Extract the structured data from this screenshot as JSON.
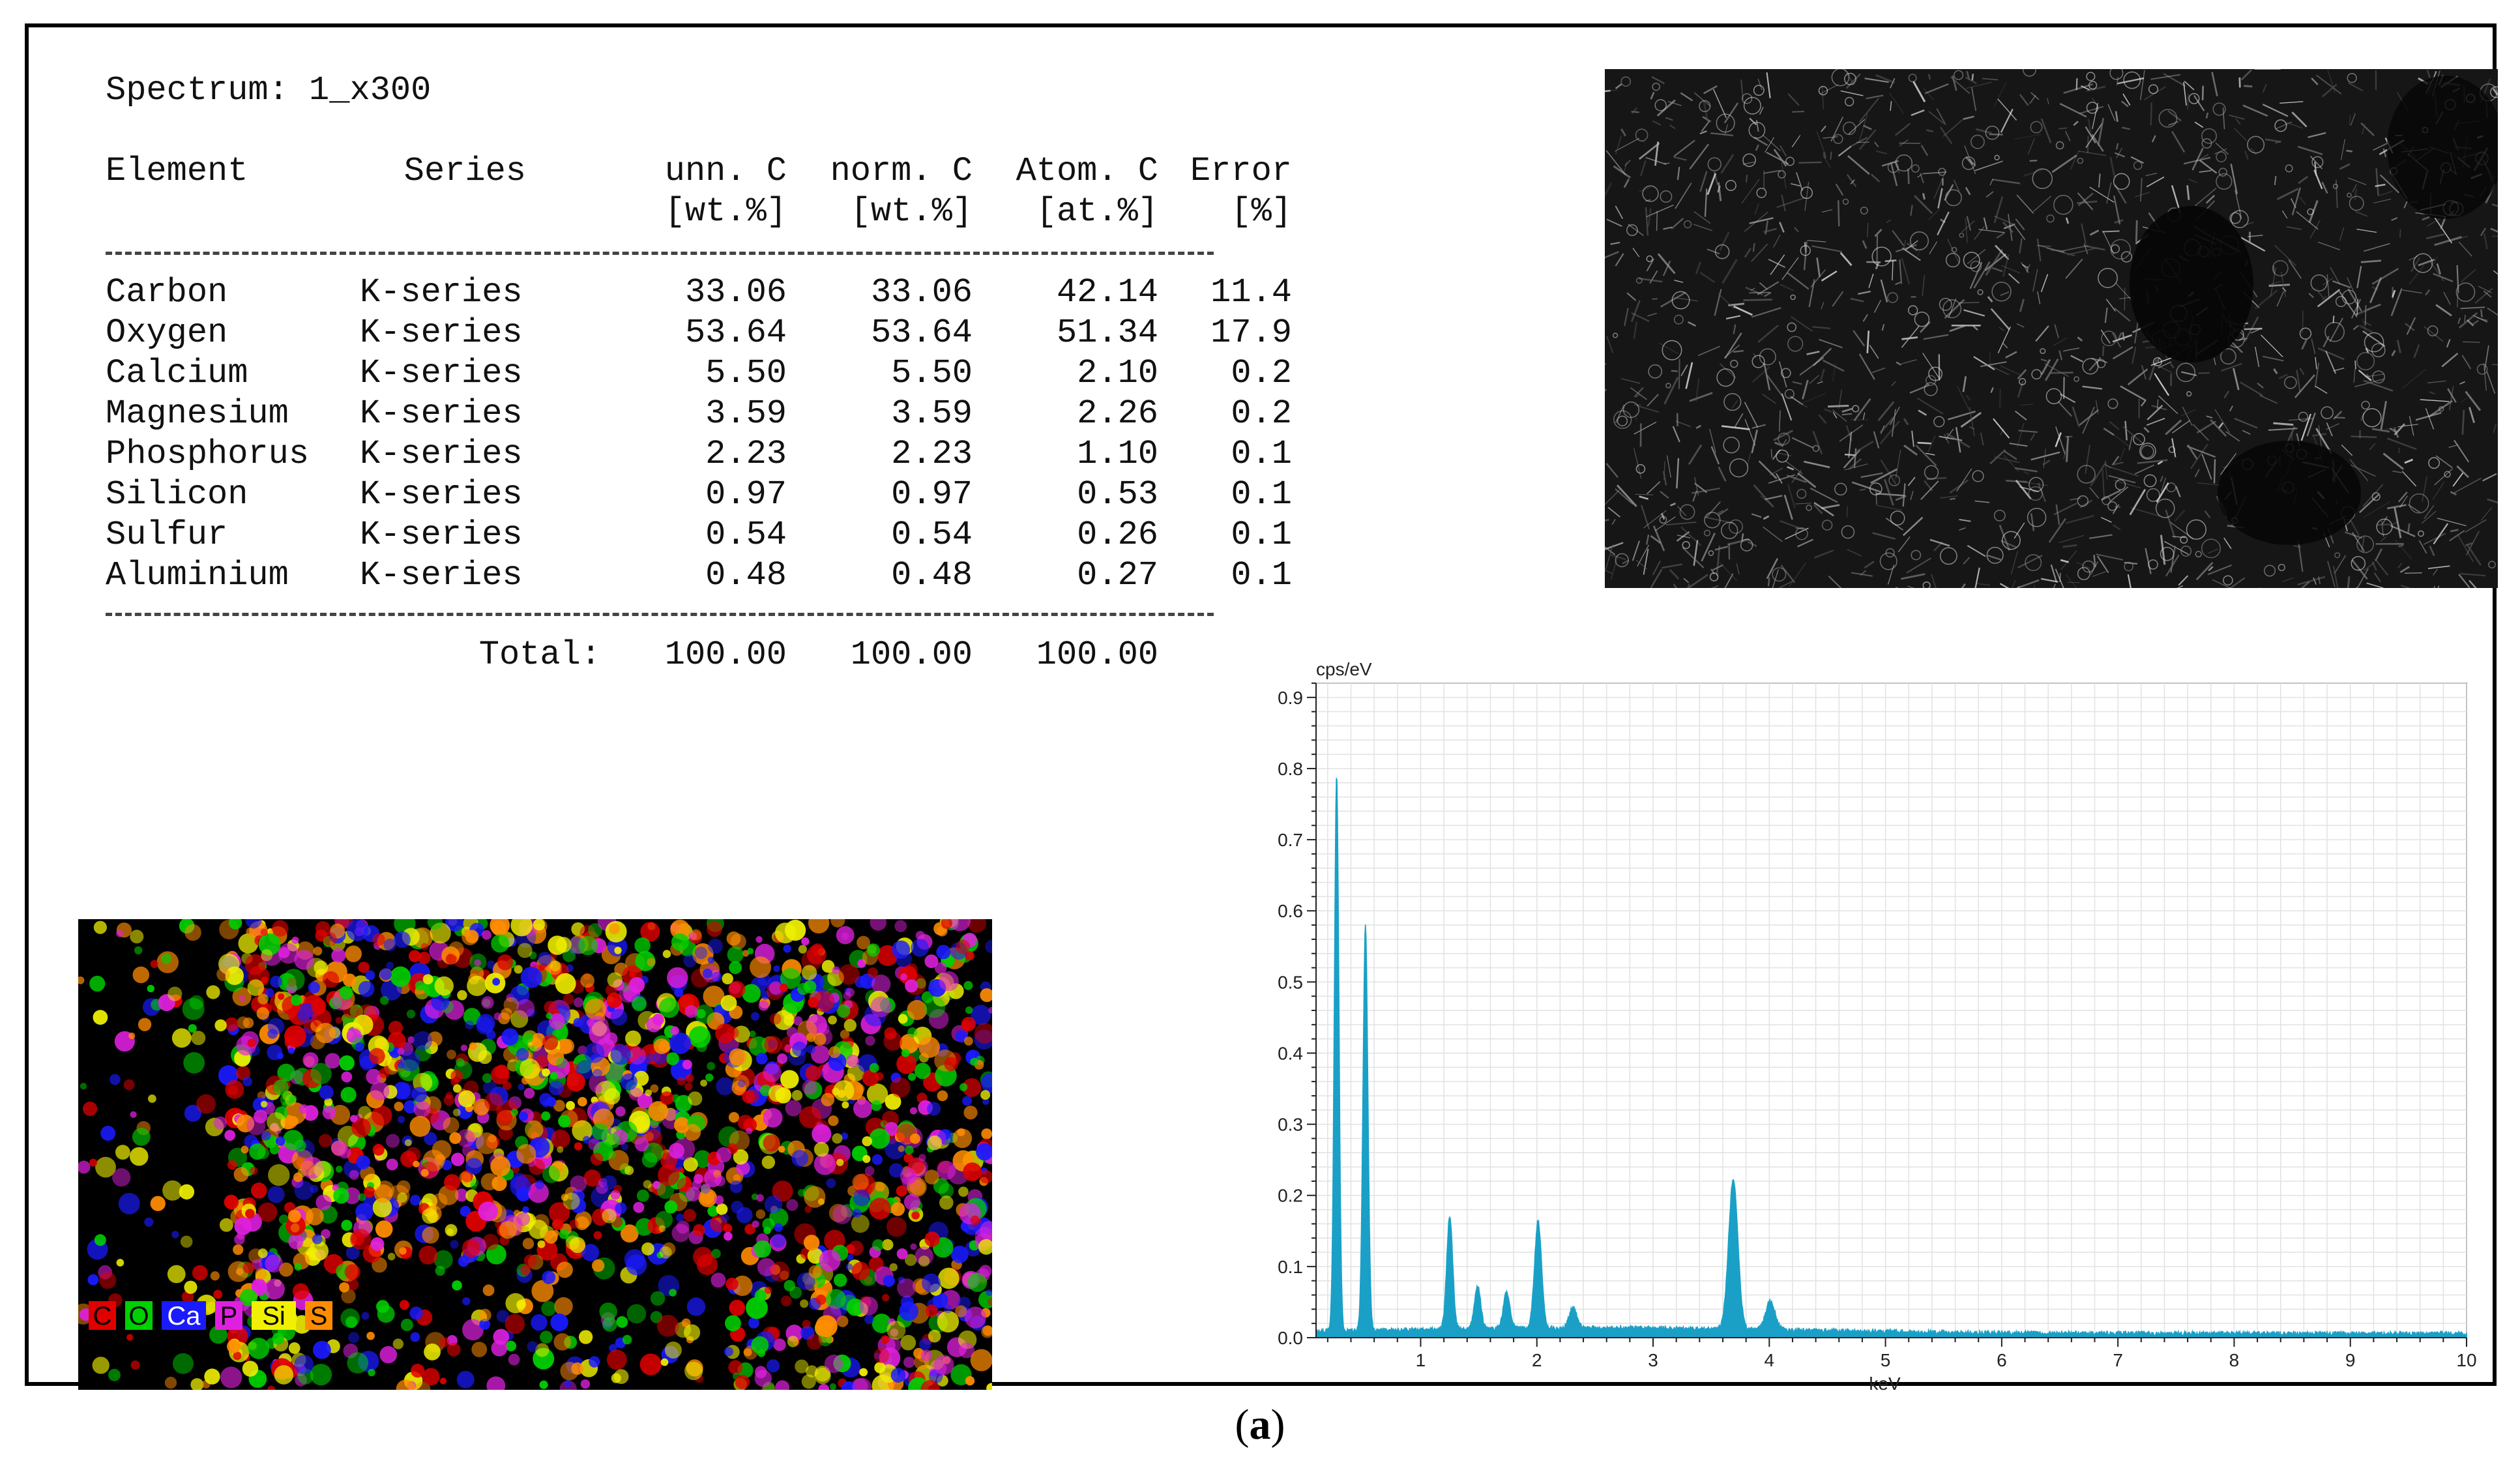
{
  "spectrum_label": "Spectrum: 1_x300",
  "table": {
    "headers": {
      "element": "Element",
      "series": "Series",
      "unn": "unn. C",
      "norm": "norm. C",
      "atom": "Atom. C",
      "error": "Error"
    },
    "units": {
      "unn": "[wt.%]",
      "norm": "[wt.%]",
      "atom": "[at.%]",
      "error": "[%]"
    },
    "rows": [
      {
        "element": "Carbon",
        "series": "K-series",
        "unn": "33.06",
        "norm": "33.06",
        "atom": "42.14",
        "error": "11.4"
      },
      {
        "element": "Oxygen",
        "series": "K-series",
        "unn": "53.64",
        "norm": "53.64",
        "atom": "51.34",
        "error": "17.9"
      },
      {
        "element": "Calcium",
        "series": "K-series",
        "unn": "5.50",
        "norm": "5.50",
        "atom": "2.10",
        "error": "0.2"
      },
      {
        "element": "Magnesium",
        "series": "K-series",
        "unn": "3.59",
        "norm": "3.59",
        "atom": "2.26",
        "error": "0.2"
      },
      {
        "element": "Phosphorus",
        "series": "K-series",
        "unn": "2.23",
        "norm": "2.23",
        "atom": "1.10",
        "error": "0.1"
      },
      {
        "element": "Silicon",
        "series": "K-series",
        "unn": "0.97",
        "norm": "0.97",
        "atom": "0.53",
        "error": "0.1"
      },
      {
        "element": "Sulfur",
        "series": "K-series",
        "unn": "0.54",
        "norm": "0.54",
        "atom": "0.26",
        "error": "0.1"
      },
      {
        "element": "Aluminium",
        "series": "K-series",
        "unn": "0.48",
        "norm": "0.48",
        "atom": "0.27",
        "error": "0.1"
      }
    ],
    "total": {
      "label": "Total:",
      "unn": "100.00",
      "norm": "100.00",
      "atom": "100.00"
    }
  },
  "map_legend": [
    {
      "label": "C",
      "color": "#e00000",
      "text_color": "#000000"
    },
    {
      "label": "O",
      "color": "#00d000",
      "text_color": "#000000"
    },
    {
      "label": "Ca",
      "color": "#1a1aff",
      "text_color": "#ffffff"
    },
    {
      "label": "P",
      "color": "#e020e0",
      "text_color": "#000000"
    },
    {
      "label": "Si",
      "color": "#f0f000",
      "text_color": "#000000"
    },
    {
      "label": "S",
      "color": "#ff8c00",
      "text_color": "#000000"
    }
  ],
  "chart_data": {
    "type": "area",
    "ylabel": "cps/eV",
    "xlabel": "keV",
    "xlim": [
      0.1,
      10
    ],
    "ylim": [
      0,
      0.92
    ],
    "x_ticks": [
      "1",
      "2",
      "3",
      "4",
      "5",
      "6",
      "7",
      "8",
      "9",
      "10"
    ],
    "y_ticks": [
      "0.0",
      "0.1",
      "0.2",
      "0.3",
      "0.4",
      "0.5",
      "0.6",
      "0.7",
      "0.8",
      "0.9"
    ],
    "grid": true,
    "color": "#1aa0c6",
    "baseline": 0.01,
    "peaks": [
      {
        "energy": 0.277,
        "intensity": 0.78
      },
      {
        "energy": 0.525,
        "intensity": 0.57
      },
      {
        "energy": 1.25,
        "intensity": 0.16
      },
      {
        "energy": 1.49,
        "intensity": 0.06
      },
      {
        "energy": 1.74,
        "intensity": 0.05
      },
      {
        "energy": 2.01,
        "intensity": 0.15
      },
      {
        "energy": 2.31,
        "intensity": 0.03
      },
      {
        "energy": 3.69,
        "intensity": 0.21
      },
      {
        "energy": 4.01,
        "intensity": 0.04
      }
    ]
  },
  "caption": {
    "open": "(",
    "label": "a",
    "close": ")"
  }
}
